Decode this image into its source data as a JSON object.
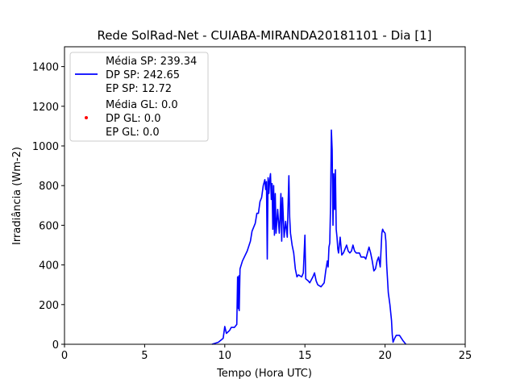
{
  "chart_data": {
    "type": "line",
    "title": "Rede SolRad-Net - CUIABA-MIRANDA20181101 - Dia [1]",
    "xlabel": "Tempo (Hora UTC)",
    "ylabel": "Irradiância (Wm-2)",
    "xlim": [
      0,
      25
    ],
    "ylim": [
      0,
      1500
    ],
    "xticks": [
      0,
      5,
      10,
      15,
      20,
      25
    ],
    "yticks": [
      0,
      200,
      400,
      600,
      800,
      1000,
      1200,
      1400
    ],
    "grid": false,
    "legend_position": "top-left",
    "legend": [
      {
        "lines": [
          "Média SP: 239.34",
          "DP SP: 242.65",
          "EP SP: 12.72"
        ],
        "marker": "line",
        "color": "#0000ff"
      },
      {
        "lines": [
          "Média GL: 0.0",
          "DP GL: 0.0",
          "EP GL: 0.0"
        ],
        "marker": "dot",
        "color": "#ff0000"
      }
    ],
    "series": [
      {
        "color": "#0000ff",
        "points": [
          [
            9.2,
            0
          ],
          [
            9.6,
            10
          ],
          [
            9.9,
            30
          ],
          [
            10.0,
            90
          ],
          [
            10.1,
            55
          ],
          [
            10.3,
            70
          ],
          [
            10.4,
            85
          ],
          [
            10.6,
            85
          ],
          [
            10.75,
            100
          ],
          [
            10.8,
            340
          ],
          [
            10.85,
            180
          ],
          [
            10.88,
            345
          ],
          [
            10.9,
            170
          ],
          [
            10.95,
            380
          ],
          [
            11.1,
            420
          ],
          [
            11.4,
            470
          ],
          [
            11.6,
            520
          ],
          [
            11.7,
            570
          ],
          [
            11.9,
            610
          ],
          [
            12.0,
            660
          ],
          [
            12.1,
            660
          ],
          [
            12.2,
            720
          ],
          [
            12.3,
            740
          ],
          [
            12.4,
            800
          ],
          [
            12.5,
            830
          ],
          [
            12.55,
            780
          ],
          [
            12.6,
            820
          ],
          [
            12.65,
            430
          ],
          [
            12.7,
            840
          ],
          [
            12.75,
            760
          ],
          [
            12.8,
            830
          ],
          [
            12.85,
            860
          ],
          [
            12.9,
            730
          ],
          [
            12.95,
            810
          ],
          [
            13.0,
            580
          ],
          [
            13.05,
            800
          ],
          [
            13.1,
            550
          ],
          [
            13.15,
            760
          ],
          [
            13.2,
            560
          ],
          [
            13.3,
            680
          ],
          [
            13.4,
            560
          ],
          [
            13.45,
            640
          ],
          [
            13.5,
            760
          ],
          [
            13.55,
            520
          ],
          [
            13.6,
            740
          ],
          [
            13.7,
            540
          ],
          [
            13.8,
            620
          ],
          [
            13.9,
            540
          ],
          [
            14.0,
            850
          ],
          [
            14.05,
            640
          ],
          [
            14.1,
            560
          ],
          [
            14.2,
            500
          ],
          [
            14.3,
            460
          ],
          [
            14.4,
            380
          ],
          [
            14.5,
            340
          ],
          [
            14.6,
            350
          ],
          [
            14.8,
            340
          ],
          [
            14.9,
            360
          ],
          [
            15.0,
            550
          ],
          [
            15.05,
            330
          ],
          [
            15.2,
            320
          ],
          [
            15.3,
            310
          ],
          [
            15.5,
            340
          ],
          [
            15.6,
            360
          ],
          [
            15.7,
            320
          ],
          [
            15.8,
            300
          ],
          [
            16.0,
            290
          ],
          [
            16.2,
            310
          ],
          [
            16.3,
            370
          ],
          [
            16.4,
            420
          ],
          [
            16.45,
            390
          ],
          [
            16.5,
            490
          ],
          [
            16.55,
            510
          ],
          [
            16.6,
            700
          ],
          [
            16.65,
            1080
          ],
          [
            16.7,
            980
          ],
          [
            16.75,
            600
          ],
          [
            16.8,
            860
          ],
          [
            16.85,
            680
          ],
          [
            16.9,
            880
          ],
          [
            16.95,
            580
          ],
          [
            17.0,
            540
          ],
          [
            17.05,
            480
          ],
          [
            17.1,
            460
          ],
          [
            17.2,
            540
          ],
          [
            17.3,
            450
          ],
          [
            17.4,
            460
          ],
          [
            17.5,
            480
          ],
          [
            17.6,
            500
          ],
          [
            17.7,
            470
          ],
          [
            17.8,
            460
          ],
          [
            17.9,
            470
          ],
          [
            18.0,
            500
          ],
          [
            18.1,
            470
          ],
          [
            18.2,
            460
          ],
          [
            18.4,
            460
          ],
          [
            18.5,
            440
          ],
          [
            18.7,
            440
          ],
          [
            18.8,
            430
          ],
          [
            19.0,
            490
          ],
          [
            19.1,
            460
          ],
          [
            19.2,
            420
          ],
          [
            19.3,
            370
          ],
          [
            19.4,
            380
          ],
          [
            19.5,
            420
          ],
          [
            19.6,
            440
          ],
          [
            19.7,
            390
          ],
          [
            19.8,
            560
          ],
          [
            19.85,
            580
          ],
          [
            19.9,
            570
          ],
          [
            20.0,
            560
          ],
          [
            20.05,
            520
          ],
          [
            20.1,
            400
          ],
          [
            20.2,
            260
          ],
          [
            20.3,
            200
          ],
          [
            20.4,
            120
          ],
          [
            20.45,
            50
          ],
          [
            20.5,
            10
          ],
          [
            20.6,
            30
          ],
          [
            20.7,
            45
          ],
          [
            20.9,
            45
          ],
          [
            21.1,
            20
          ],
          [
            21.3,
            0
          ]
        ]
      }
    ]
  }
}
